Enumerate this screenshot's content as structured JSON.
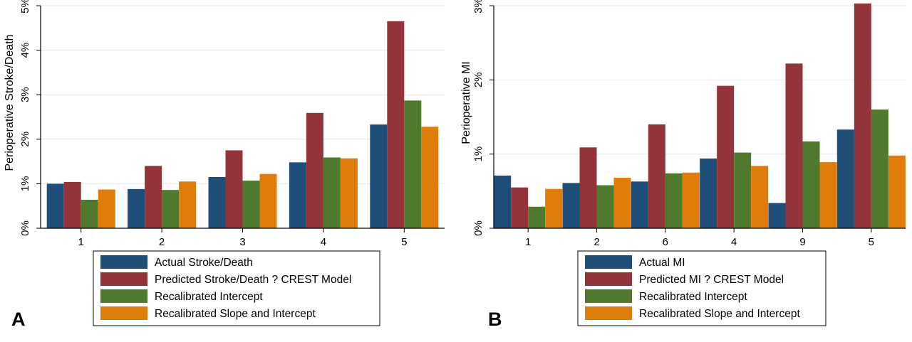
{
  "colors": {
    "series": [
      "#1f4e79",
      "#943339",
      "#4f7a2e",
      "#e07c0a"
    ],
    "grid": "#e3eaed",
    "axis": "#000000"
  },
  "chart_data": [
    {
      "type": "bar",
      "panel_label": "A",
      "ylabel": "Perioperative Stroke/Death",
      "xlabel": "",
      "categories": [
        "1",
        "2",
        "3",
        "4",
        "5"
      ],
      "ylim": [
        0,
        5
      ],
      "yticks": [
        0,
        1,
        2,
        3,
        4,
        5
      ],
      "ytick_labels": [
        "0%",
        "1%",
        "2%",
        "3%",
        "4%",
        "5%"
      ],
      "grid": true,
      "legend_position": "bottom",
      "series": [
        {
          "name": "Actual Stroke/Death",
          "values": [
            1.0,
            0.88,
            1.15,
            1.48,
            2.33
          ]
        },
        {
          "name": "Predicted Stroke/Death ? CREST Model",
          "values": [
            1.04,
            1.4,
            1.75,
            2.59,
            4.65
          ]
        },
        {
          "name": "Recalibrated Intercept",
          "values": [
            0.64,
            0.86,
            1.07,
            1.59,
            2.87
          ]
        },
        {
          "name": "Recalibrated Slope and Intercept",
          "values": [
            0.87,
            1.05,
            1.22,
            1.57,
            2.28
          ]
        }
      ]
    },
    {
      "type": "bar",
      "panel_label": "B",
      "ylabel": "Perioperative MI",
      "xlabel": "",
      "categories": [
        "1",
        "2",
        "6",
        "4",
        "9",
        "5"
      ],
      "ylim": [
        0,
        3
      ],
      "yticks": [
        0,
        1,
        2,
        3
      ],
      "ytick_labels": [
        "0%",
        "1%",
        "2%",
        "3%"
      ],
      "grid": true,
      "legend_position": "bottom",
      "series": [
        {
          "name": "Actual MI",
          "values": [
            0.71,
            0.61,
            0.63,
            0.94,
            0.34,
            1.33
          ]
        },
        {
          "name": "Predicted MI ? CREST Model",
          "values": [
            0.55,
            1.09,
            1.4,
            1.92,
            2.22,
            3.03
          ]
        },
        {
          "name": "Recalibrated Intercept",
          "values": [
            0.29,
            0.58,
            0.74,
            1.02,
            1.17,
            1.6
          ]
        },
        {
          "name": "Recalibrated Slope and Intercept",
          "values": [
            0.53,
            0.68,
            0.75,
            0.84,
            0.89,
            0.98
          ]
        }
      ]
    }
  ]
}
